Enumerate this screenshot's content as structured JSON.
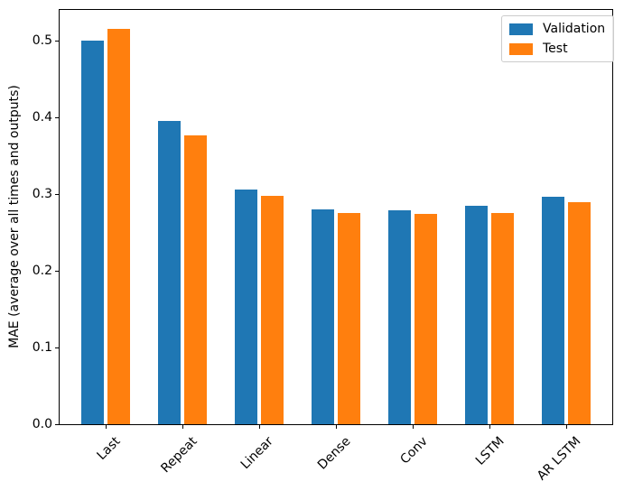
{
  "chart_data": {
    "type": "bar",
    "title": "",
    "categories": [
      "Last",
      "Repeat",
      "Linear",
      "Dense",
      "Conv",
      "LSTM",
      "AR LSTM"
    ],
    "series": [
      {
        "name": "Validation",
        "color": "#1f77b4",
        "values": [
          0.5,
          0.395,
          0.306,
          0.28,
          0.279,
          0.285,
          0.296
        ]
      },
      {
        "name": "Test",
        "color": "#ff7f0e",
        "values": [
          0.515,
          0.376,
          0.298,
          0.275,
          0.274,
          0.275,
          0.29
        ]
      }
    ],
    "xlabel": "",
    "ylabel": "MAE (average over all times and outputs)",
    "yticks": [
      "0.0",
      "0.1",
      "0.2",
      "0.3",
      "0.4",
      "0.5"
    ],
    "ylim": [
      0,
      0.54
    ],
    "grid": false,
    "legend": {
      "position": "upper right",
      "entries": [
        "Validation",
        "Test"
      ]
    },
    "xtick_rotation": 45
  }
}
